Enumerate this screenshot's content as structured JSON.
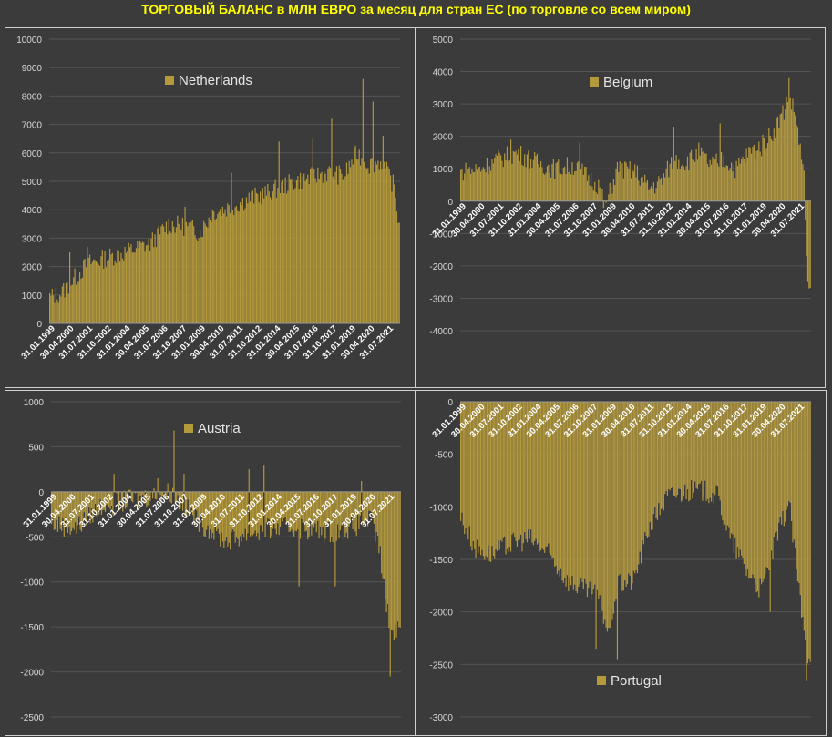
{
  "title": "ТОРГОВЫЙ БАЛАНС в МЛН ЕВРО за месяц для стран ЕС (по торговле со всем миром)",
  "bar_color": "#b59a3c",
  "chart_data": [
    {
      "type": "bar",
      "legend": "Netherlands",
      "ylim": [
        0,
        10000
      ],
      "yticks": [
        0,
        1000,
        2000,
        3000,
        4000,
        5000,
        6000,
        7000,
        8000,
        9000,
        10000
      ],
      "xticks": [
        "31.01.1999",
        "30.04.2000",
        "31.07.2001",
        "31.10.2002",
        "31.01.2004",
        "30.04.2005",
        "31.07.2006",
        "31.10.2007",
        "31.01.2009",
        "30.04.2010",
        "31.07.2011",
        "31.10.2012",
        "31.01.2014",
        "30.04.2015",
        "31.07.2016",
        "31.10.2017",
        "31.01.2019",
        "30.04.2020",
        "31.07.2021"
      ],
      "anchors": [
        [
          0,
          900
        ],
        [
          10,
          1100
        ],
        [
          20,
          1600
        ],
        [
          30,
          2100
        ],
        [
          45,
          2300
        ],
        [
          60,
          2500
        ],
        [
          80,
          2800
        ],
        [
          95,
          3500
        ],
        [
          110,
          3400
        ],
        [
          120,
          3200
        ],
        [
          130,
          3900
        ],
        [
          145,
          4100
        ],
        [
          160,
          4400
        ],
        [
          175,
          4600
        ],
        [
          190,
          4900
        ],
        [
          205,
          5100
        ],
        [
          220,
          5300
        ],
        [
          235,
          5200
        ],
        [
          245,
          6000
        ],
        [
          255,
          5600
        ],
        [
          265,
          5700
        ],
        [
          275,
          4800
        ],
        [
          279,
          3400
        ]
      ],
      "spikes": [
        [
          16,
          2500
        ],
        [
          30,
          2700
        ],
        [
          108,
          4100
        ],
        [
          145,
          5300
        ],
        [
          183,
          6400
        ],
        [
          210,
          6500
        ],
        [
          225,
          7200
        ],
        [
          250,
          8600
        ],
        [
          258,
          7800
        ],
        [
          266,
          6600
        ]
      ]
    },
    {
      "type": "bar",
      "legend": "Belgium",
      "ylim": [
        -4000,
        5000
      ],
      "yticks": [
        -4000,
        -3000,
        -2000,
        -1000,
        0,
        1000,
        2000,
        3000,
        4000,
        5000
      ],
      "xticks": [
        "31.01.1999",
        "30.04.2000",
        "31.07.2001",
        "31.10.2002",
        "31.01.2004",
        "30.04.2005",
        "31.07.2006",
        "31.10.2007",
        "31.01.2009",
        "30.04.2010",
        "31.07.2011",
        "31.10.2012",
        "31.01.2014",
        "30.04.2015",
        "31.07.2016",
        "31.10.2017",
        "31.01.2019",
        "30.04.2020",
        "31.07.2021"
      ],
      "anchors": [
        [
          0,
          900
        ],
        [
          15,
          1000
        ],
        [
          30,
          1300
        ],
        [
          45,
          1500
        ],
        [
          60,
          1200
        ],
        [
          75,
          1000
        ],
        [
          90,
          1100
        ],
        [
          110,
          500
        ],
        [
          115,
          -200
        ],
        [
          125,
          1000
        ],
        [
          140,
          900
        ],
        [
          150,
          400
        ],
        [
          160,
          600
        ],
        [
          170,
          1300
        ],
        [
          180,
          1200
        ],
        [
          190,
          1500
        ],
        [
          200,
          1100
        ],
        [
          210,
          1300
        ],
        [
          220,
          1000
        ],
        [
          230,
          1500
        ],
        [
          240,
          1700
        ],
        [
          250,
          2200
        ],
        [
          258,
          2800
        ],
        [
          262,
          3300
        ],
        [
          268,
          2500
        ],
        [
          274,
          700
        ],
        [
          277,
          -2800
        ]
      ],
      "spikes": [
        [
          40,
          1900
        ],
        [
          95,
          1800
        ],
        [
          170,
          2300
        ],
        [
          207,
          2400
        ],
        [
          262,
          3800
        ]
      ]
    },
    {
      "type": "bar",
      "legend": "Austria",
      "ylim": [
        -2500,
        1000
      ],
      "yticks": [
        -2500,
        -2000,
        -1500,
        -1000,
        -500,
        0,
        500,
        1000
      ],
      "xticks": [
        "31.01.1999",
        "30.04.2000",
        "31.07.2001",
        "31.10.2002",
        "31.01.2004",
        "30.04.2005",
        "31.07.2006",
        "31.10.2007",
        "31.01.2009",
        "30.04.2010",
        "31.07.2011",
        "31.10.2012",
        "31.01.2014",
        "30.04.2015",
        "31.07.2016",
        "31.10.2017",
        "31.01.2019",
        "30.04.2020",
        "31.07.2021"
      ],
      "anchors": [
        [
          0,
          -350
        ],
        [
          20,
          -400
        ],
        [
          40,
          -150
        ],
        [
          60,
          -100
        ],
        [
          80,
          -50
        ],
        [
          95,
          0
        ],
        [
          105,
          -150
        ],
        [
          120,
          -350
        ],
        [
          140,
          -550
        ],
        [
          160,
          -450
        ],
        [
          180,
          -400
        ],
        [
          200,
          -400
        ],
        [
          220,
          -450
        ],
        [
          240,
          -400
        ],
        [
          255,
          -300
        ],
        [
          262,
          -600
        ],
        [
          268,
          -1300
        ],
        [
          274,
          -1600
        ],
        [
          279,
          -1400
        ]
      ],
      "spikes": [
        [
          50,
          200
        ],
        [
          85,
          150
        ],
        [
          98,
          680
        ],
        [
          106,
          200
        ],
        [
          158,
          250
        ],
        [
          170,
          300
        ],
        [
          198,
          -1050
        ],
        [
          227,
          -1050
        ],
        [
          248,
          120
        ],
        [
          271,
          -2050
        ]
      ]
    },
    {
      "type": "bar",
      "legend": "Portugal",
      "ylim": [
        -3000,
        0
      ],
      "yticks": [
        -3000,
        -2500,
        -2000,
        -1500,
        -1000,
        -500,
        0
      ],
      "xticks": [
        "31.01.1999",
        "30.04.2000",
        "31.07.2001",
        "31.10.2002",
        "31.01.2004",
        "30.04.2005",
        "31.07.2006",
        "31.10.2007",
        "31.01.2009",
        "30.04.2010",
        "31.07.2011",
        "31.10.2012",
        "31.01.2014",
        "30.04.2015",
        "31.07.2016",
        "31.10.2017",
        "31.01.2019",
        "30.04.2020",
        "31.07.2021"
      ],
      "anchors": [
        [
          0,
          -1100
        ],
        [
          12,
          -1400
        ],
        [
          25,
          -1450
        ],
        [
          40,
          -1350
        ],
        [
          55,
          -1300
        ],
        [
          70,
          -1450
        ],
        [
          85,
          -1700
        ],
        [
          100,
          -1800
        ],
        [
          110,
          -1850
        ],
        [
          118,
          -2200
        ],
        [
          125,
          -1750
        ],
        [
          138,
          -1700
        ],
        [
          150,
          -1200
        ],
        [
          165,
          -900
        ],
        [
          180,
          -850
        ],
        [
          195,
          -850
        ],
        [
          205,
          -900
        ],
        [
          215,
          -1300
        ],
        [
          228,
          -1600
        ],
        [
          240,
          -1800
        ],
        [
          252,
          -1300
        ],
        [
          262,
          -950
        ],
        [
          270,
          -1800
        ],
        [
          276,
          -2400
        ]
      ],
      "spikes": [
        [
          108,
          -2350
        ],
        [
          125,
          -2450
        ],
        [
          247,
          -2000
        ],
        [
          276,
          -2650
        ]
      ]
    }
  ]
}
